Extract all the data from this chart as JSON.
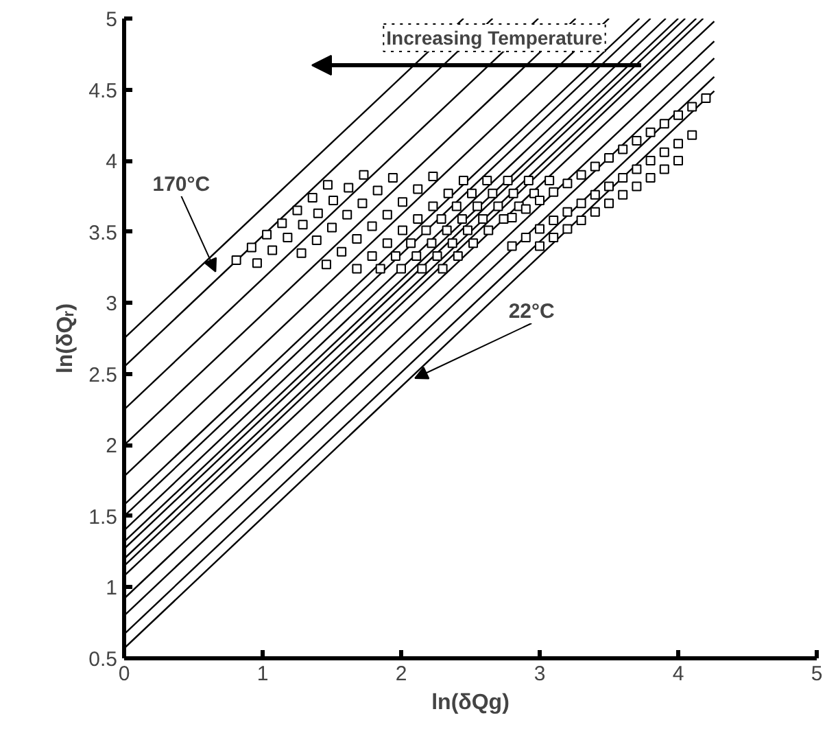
{
  "chart_data": {
    "type": "line",
    "xlabel": "ln(δQg)",
    "ylabel": "ln(δQᵣ)",
    "xlim": [
      0,
      5
    ],
    "ylim": [
      0.5,
      5
    ],
    "xticks": [
      0,
      1,
      2,
      3,
      4,
      5
    ],
    "yticks": [
      0.5,
      1,
      1.5,
      2,
      2.5,
      3,
      3.5,
      4,
      4.5,
      5
    ],
    "line_style": "solid",
    "annotations": [
      {
        "text": "170°C",
        "x": 0.66,
        "y": 3.22
      },
      {
        "text": "22°C",
        "x": 2.1,
        "y": 2.47
      },
      "Increasing Temperature"
    ],
    "series": [
      {
        "color": "#000000",
        "x": [
          0,
          2.45
        ],
        "values": [
          2.75,
          5.0
        ]
      },
      {
        "color": "#000000",
        "x": [
          0,
          2.66
        ],
        "values": [
          2.55,
          5.0
        ]
      },
      {
        "color": "#000000",
        "x": [
          0,
          2.99
        ],
        "values": [
          2.25,
          5.0
        ]
      },
      {
        "color": "#000000",
        "x": [
          0,
          3.26
        ],
        "values": [
          2.0,
          5.0
        ]
      },
      {
        "color": "#000000",
        "x": [
          0,
          3.5
        ],
        "values": [
          1.78,
          5.0
        ]
      },
      {
        "color": "#000000",
        "x": [
          0,
          3.72
        ],
        "values": [
          1.58,
          5.0
        ]
      },
      {
        "color": "#000000",
        "x": [
          0,
          3.8
        ],
        "values": [
          1.5,
          5.0
        ]
      },
      {
        "color": "#000000",
        "x": [
          0,
          3.91
        ],
        "values": [
          1.4,
          5.0
        ]
      },
      {
        "color": "#000000",
        "x": [
          0,
          4.0
        ],
        "values": [
          1.32,
          5.0
        ]
      },
      {
        "color": "#000000",
        "x": [
          0,
          4.05
        ],
        "values": [
          1.27,
          5.0
        ]
      },
      {
        "color": "#000000",
        "x": [
          0,
          4.13
        ],
        "values": [
          1.2,
          5.0
        ]
      },
      {
        "color": "#000000",
        "x": [
          0,
          4.18
        ],
        "values": [
          1.15,
          5.0
        ]
      },
      {
        "color": "#000000",
        "x": [
          0,
          4.26
        ],
        "values": [
          1.08,
          4.98
        ]
      },
      {
        "color": "#000000",
        "x": [
          0,
          4.26
        ],
        "values": [
          0.92,
          4.84
        ]
      },
      {
        "color": "#000000",
        "x": [
          0,
          4.26
        ],
        "values": [
          0.8,
          4.72
        ]
      },
      {
        "color": "#000000",
        "x": [
          0,
          4.26
        ],
        "values": [
          0.67,
          4.59
        ]
      },
      {
        "color": "#000000",
        "x": [
          0,
          4.26
        ],
        "values": [
          0.57,
          4.49
        ]
      },
      {
        "type": "scatter",
        "marker": "square",
        "color": "#000000",
        "x": [
          0.81,
          0.92,
          1.03,
          1.14,
          1.25,
          1.36,
          1.47,
          0.96,
          1.07,
          1.18,
          1.29,
          1.4,
          1.51,
          1.62,
          1.73,
          1.28,
          1.39,
          1.5,
          1.61,
          1.72,
          1.83,
          1.94,
          1.46,
          1.57,
          1.68,
          1.79,
          1.9,
          2.01,
          2.12,
          2.23,
          1.68,
          1.79,
          1.9,
          2.01,
          2.12,
          2.23,
          2.34,
          2.45,
          1.85,
          1.96,
          2.07,
          2.18,
          2.29,
          2.4,
          2.51,
          2.62,
          2.0,
          2.11,
          2.22,
          2.33,
          2.44,
          2.55,
          2.66,
          2.77,
          2.15,
          2.26,
          2.37,
          2.48,
          2.59,
          2.7,
          2.81,
          2.92,
          2.3,
          2.41,
          2.52,
          2.63,
          2.74,
          2.85,
          2.96,
          3.07
        ],
        "values": [
          3.3,
          3.39,
          3.48,
          3.56,
          3.65,
          3.74,
          3.83,
          3.28,
          3.37,
          3.46,
          3.55,
          3.63,
          3.72,
          3.81,
          3.9,
          3.35,
          3.44,
          3.53,
          3.62,
          3.7,
          3.79,
          3.88,
          3.27,
          3.36,
          3.45,
          3.54,
          3.62,
          3.71,
          3.8,
          3.89,
          3.24,
          3.33,
          3.42,
          3.51,
          3.59,
          3.68,
          3.77,
          3.86,
          3.24,
          3.33,
          3.42,
          3.51,
          3.59,
          3.68,
          3.77,
          3.86,
          3.24,
          3.33,
          3.42,
          3.51,
          3.59,
          3.68,
          3.77,
          3.86,
          3.24,
          3.33,
          3.42,
          3.51,
          3.59,
          3.68,
          3.77,
          3.86,
          3.24,
          3.33,
          3.42,
          3.51,
          3.59,
          3.68,
          3.77,
          3.86
        ]
      },
      {
        "type": "scatter",
        "marker": "square",
        "color": "#000000",
        "x": [
          2.8,
          2.9,
          3.0,
          3.1,
          3.2,
          3.3,
          3.4,
          3.5,
          3.6,
          3.7,
          3.8,
          3.9,
          4.0,
          4.1,
          4.2,
          2.8,
          2.9,
          3.0,
          3.1,
          3.2,
          3.3,
          3.4,
          3.5,
          3.6,
          3.7,
          3.8,
          3.9,
          4.0,
          4.1,
          3.0,
          3.1,
          3.2,
          3.3,
          3.4,
          3.5,
          3.6,
          3.7,
          3.8,
          3.9,
          4.0
        ],
        "values": [
          3.6,
          3.66,
          3.72,
          3.78,
          3.84,
          3.9,
          3.96,
          4.02,
          4.08,
          4.14,
          4.2,
          4.26,
          4.32,
          4.38,
          4.44,
          3.4,
          3.46,
          3.52,
          3.58,
          3.64,
          3.7,
          3.76,
          3.82,
          3.88,
          3.94,
          4.0,
          4.06,
          4.12,
          4.18,
          3.4,
          3.46,
          3.52,
          3.58,
          3.64,
          3.7,
          3.76,
          3.82,
          3.88,
          3.94,
          4.0
        ]
      }
    ]
  }
}
